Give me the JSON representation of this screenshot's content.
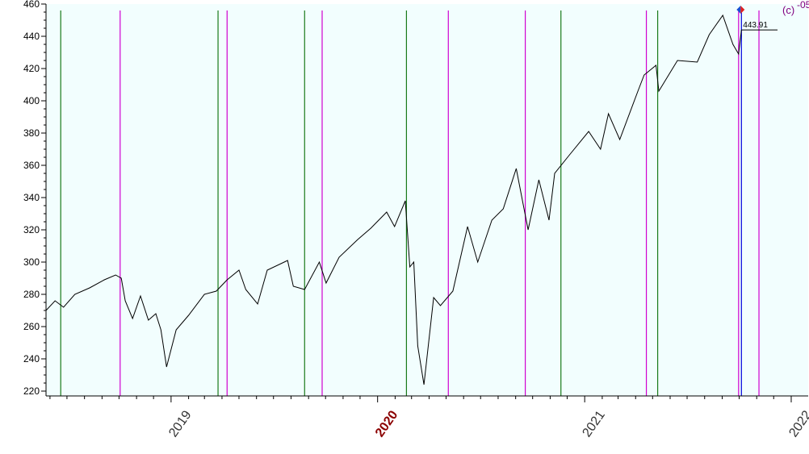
{
  "chart_data": {
    "type": "line",
    "title": "",
    "xlabel": "",
    "ylabel": "",
    "ylim": [
      217,
      460
    ],
    "xlim": [
      "2018-05-25",
      "2022-01-31"
    ],
    "y_ticks": [
      "220",
      "240",
      "260",
      "280",
      "300",
      "320",
      "340",
      "360",
      "380",
      "400",
      "420",
      "440",
      "460"
    ],
    "x_ticks": [
      {
        "label": "2019",
        "date": "2019-01-01",
        "highlight": false
      },
      {
        "label": "2020",
        "date": "2020-01-01",
        "highlight": true
      },
      {
        "label": "2021",
        "date": "2021-01-01",
        "highlight": false
      },
      {
        "label": "2022",
        "date": "2022-01-01",
        "highlight": false
      }
    ],
    "last_value_label": "443.91",
    "corner_label": "(c)",
    "corner_label_2": "-05",
    "green_lines": [
      "2018-06-20",
      "2019-03-25",
      "2019-08-25",
      "2020-02-21",
      "2020-11-20",
      "2021-05-10"
    ],
    "magenta_lines": [
      "2018-10-03",
      "2019-04-10",
      "2019-09-25",
      "2020-05-05",
      "2020-09-18",
      "2021-04-20",
      "2021-09-30",
      "2021-11-05"
    ],
    "blue_lines": [
      "2021-10-05"
    ],
    "series": [
      {
        "color": "#000000",
        "points": [
          [
            "2018-05-25",
            270
          ],
          [
            "2018-06-10",
            276
          ],
          [
            "2018-06-25",
            272
          ],
          [
            "2018-07-15",
            280
          ],
          [
            "2018-08-10",
            284
          ],
          [
            "2018-09-05",
            289
          ],
          [
            "2018-09-25",
            292
          ],
          [
            "2018-10-05",
            290
          ],
          [
            "2018-10-12",
            276
          ],
          [
            "2018-10-25",
            265
          ],
          [
            "2018-11-08",
            279
          ],
          [
            "2018-11-22",
            264
          ],
          [
            "2018-12-05",
            268
          ],
          [
            "2018-12-14",
            258
          ],
          [
            "2018-12-24",
            235
          ],
          [
            "2019-01-10",
            258
          ],
          [
            "2019-02-01",
            267
          ],
          [
            "2019-03-01",
            280
          ],
          [
            "2019-03-22",
            282
          ],
          [
            "2019-04-10",
            289
          ],
          [
            "2019-05-01",
            295
          ],
          [
            "2019-05-13",
            283
          ],
          [
            "2019-06-03",
            274
          ],
          [
            "2019-06-20",
            295
          ],
          [
            "2019-07-26",
            301
          ],
          [
            "2019-08-05",
            285
          ],
          [
            "2019-08-25",
            283
          ],
          [
            "2019-09-20",
            300
          ],
          [
            "2019-10-02",
            287
          ],
          [
            "2019-10-25",
            303
          ],
          [
            "2019-11-27",
            314
          ],
          [
            "2019-12-20",
            321
          ],
          [
            "2020-01-17",
            331
          ],
          [
            "2020-01-31",
            322
          ],
          [
            "2020-02-19",
            338
          ],
          [
            "2020-02-27",
            297
          ],
          [
            "2020-03-05",
            300
          ],
          [
            "2020-03-12",
            248
          ],
          [
            "2020-03-23",
            224
          ],
          [
            "2020-04-09",
            278
          ],
          [
            "2020-04-21",
            273
          ],
          [
            "2020-05-13",
            282
          ],
          [
            "2020-06-08",
            322
          ],
          [
            "2020-06-26",
            300
          ],
          [
            "2020-07-21",
            326
          ],
          [
            "2020-08-10",
            333
          ],
          [
            "2020-09-02",
            358
          ],
          [
            "2020-09-23",
            320
          ],
          [
            "2020-10-12",
            351
          ],
          [
            "2020-10-30",
            326
          ],
          [
            "2020-11-09",
            355
          ],
          [
            "2020-12-04",
            366
          ],
          [
            "2021-01-08",
            381
          ],
          [
            "2021-01-29",
            370
          ],
          [
            "2021-02-12",
            392
          ],
          [
            "2021-03-04",
            376
          ],
          [
            "2021-04-05",
            406
          ],
          [
            "2021-04-16",
            416
          ],
          [
            "2021-05-07",
            422
          ],
          [
            "2021-05-12",
            406
          ],
          [
            "2021-06-14",
            425
          ],
          [
            "2021-07-19",
            424
          ],
          [
            "2021-08-09",
            441
          ],
          [
            "2021-09-02",
            453
          ],
          [
            "2021-09-20",
            435
          ],
          [
            "2021-09-30",
            429
          ],
          [
            "2021-10-05",
            443.91
          ]
        ]
      }
    ]
  }
}
